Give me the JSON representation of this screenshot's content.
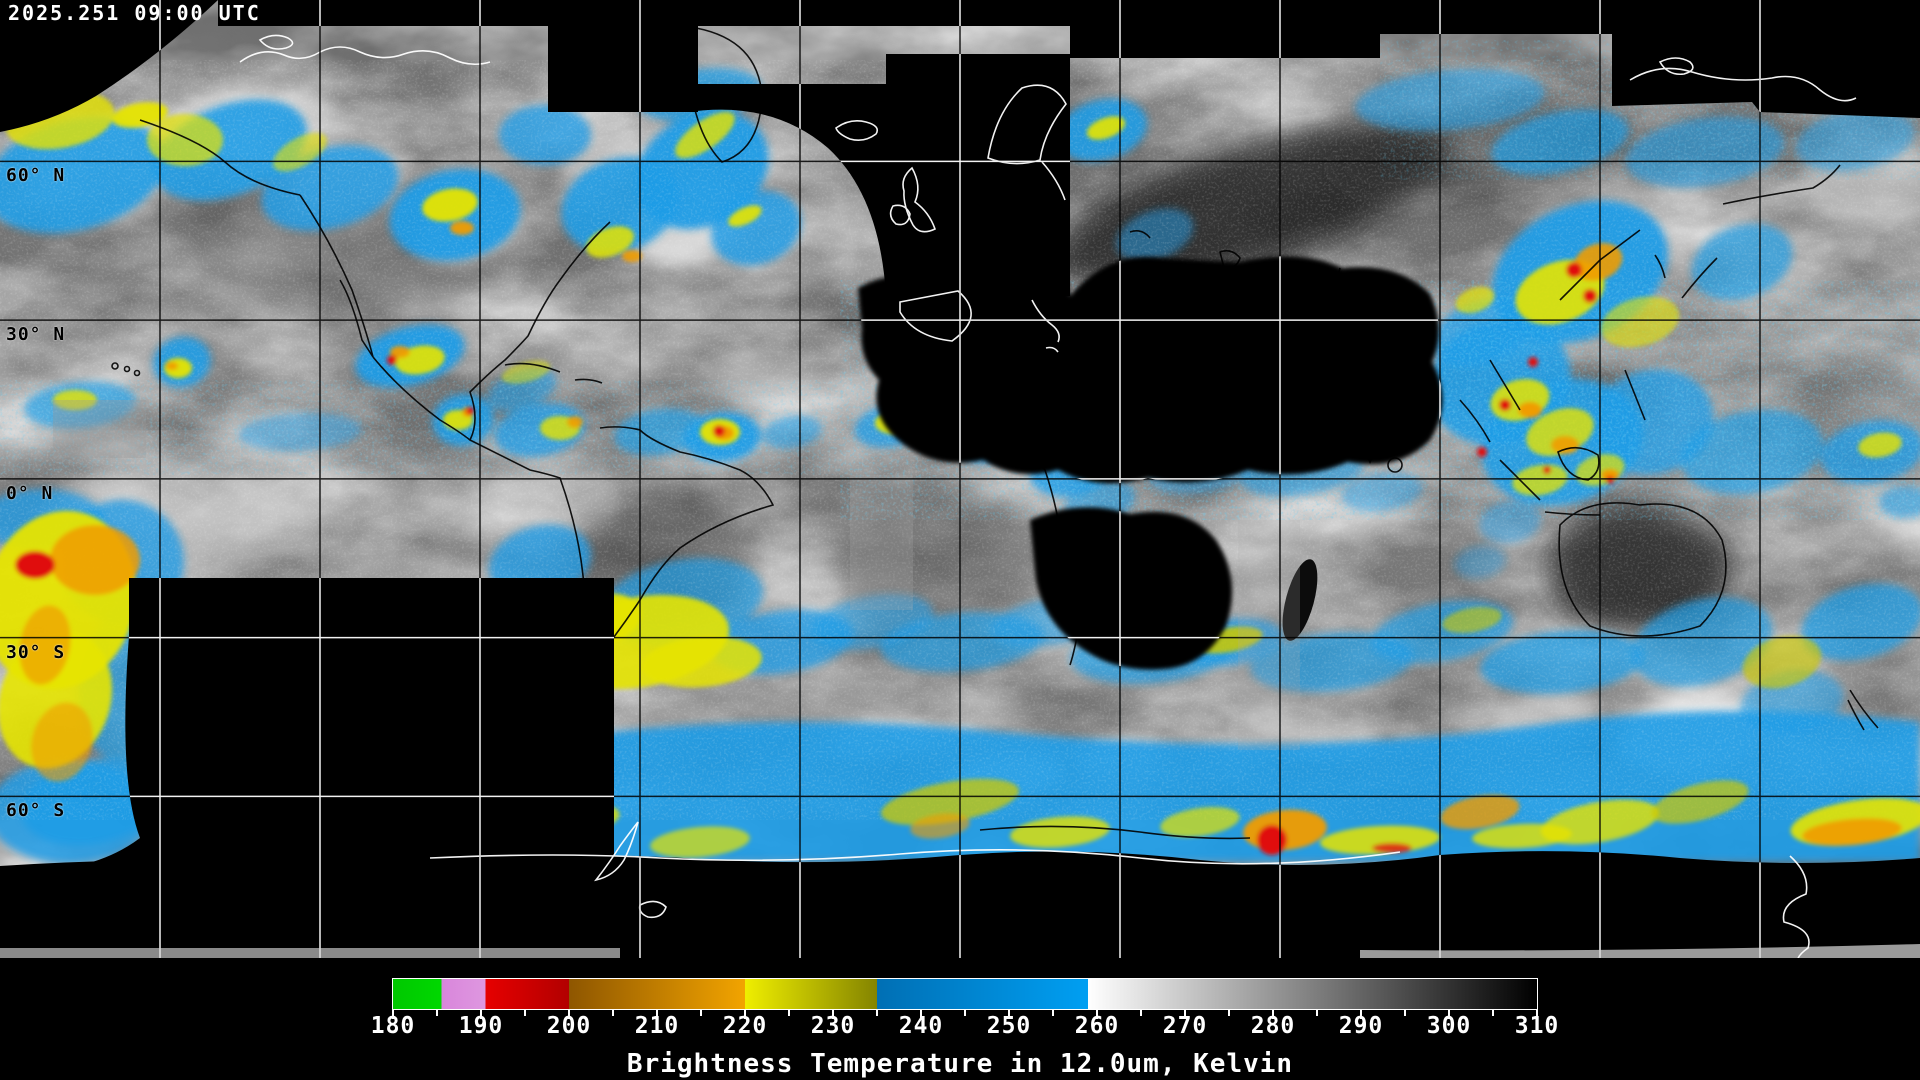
{
  "header": {
    "timestamp": "2025.251 09:00 UTC"
  },
  "map": {
    "latitude_labels": [
      {
        "label": "60° N",
        "lat": 60
      },
      {
        "label": "30° N",
        "lat": 30
      },
      {
        "label": "0° N",
        "lat": 0
      },
      {
        "label": "30° S",
        "lat": -30
      },
      {
        "label": "60° S",
        "lat": -60
      }
    ],
    "grid": {
      "lon_step_deg": 30,
      "lat_lines_deg": [
        60,
        30,
        0,
        -30,
        -60
      ]
    }
  },
  "colorbar": {
    "caption": "Brightness Temperature in 12.0um, Kelvin",
    "range_min": 180,
    "range_max": 310,
    "tick_labels": [
      180,
      190,
      200,
      210,
      220,
      230,
      240,
      250,
      260,
      270,
      280,
      290,
      300,
      310
    ],
    "minor_tick_step": 5,
    "segments": [
      {
        "from": 180,
        "to": 185.5,
        "color_start": "#00c800",
        "color_end": "#00d800"
      },
      {
        "from": 185.5,
        "to": 190.5,
        "color_start": "#d986db",
        "color_end": "#de97e0"
      },
      {
        "from": 190.5,
        "to": 200,
        "color_start": "#e60000",
        "color_end": "#b20000"
      },
      {
        "from": 200,
        "to": 220,
        "color_start": "#8e5600",
        "color_end": "#f2a400"
      },
      {
        "from": 220,
        "to": 235,
        "color_start": "#efee00",
        "color_end": "#848400"
      },
      {
        "from": 235,
        "to": 259,
        "color_start": "#006fb4",
        "color_end": "#009ff2"
      },
      {
        "from": 259,
        "to": 310,
        "color_start": "#ffffff",
        "color_end": "#000000"
      }
    ]
  }
}
